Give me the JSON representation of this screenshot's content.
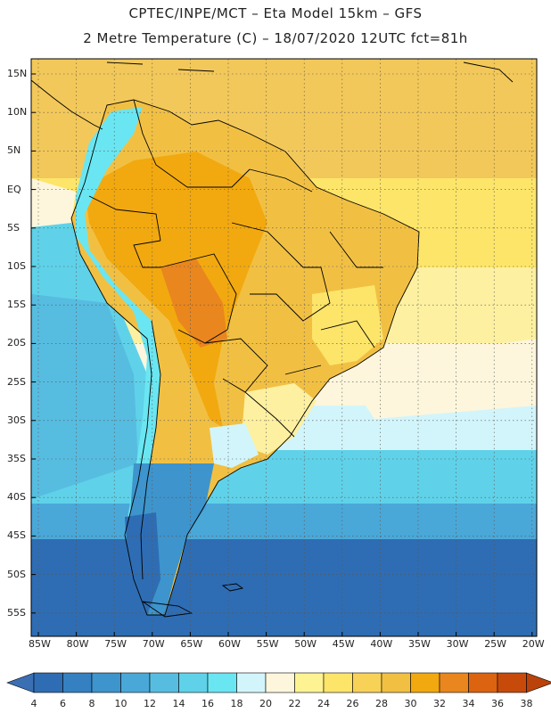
{
  "header": {
    "line1": "CPTEC/INPE/MCT –  Eta Model 15km – GFS",
    "line2": "2 Metre Temperature (C) – 18/07/2020 12UTC fct=81h"
  },
  "axes": {
    "lat_labels": [
      "15N",
      "10N",
      "5N",
      "EQ",
      "5S",
      "10S",
      "15S",
      "20S",
      "25S",
      "30S",
      "35S",
      "40S",
      "45S",
      "50S",
      "55S"
    ],
    "lon_labels": [
      "85W",
      "80W",
      "75W",
      "70W",
      "65W",
      "60W",
      "55W",
      "50W",
      "45W",
      "40W",
      "35W",
      "30W",
      "25W",
      "20W"
    ]
  },
  "colorbar": {
    "labels": [
      "4",
      "6",
      "8",
      "10",
      "12",
      "14",
      "16",
      "18",
      "20",
      "22",
      "24",
      "26",
      "28",
      "30",
      "32",
      "34",
      "36",
      "38"
    ],
    "colors": [
      "#2e6db3",
      "#3580c1",
      "#3e94cc",
      "#4aa8d8",
      "#56bde1",
      "#5fd2e9",
      "#6ae6f2",
      "#d2f5fb",
      "#fdf6dc",
      "#fef393",
      "#fde56a",
      "#f8d257",
      "#f1c043",
      "#f2a90f",
      "#e9861d",
      "#dc6310",
      "#c74a0b"
    ],
    "under_color": "#3a6fb4",
    "over_color": "#b9430a"
  },
  "map": {
    "region": "South America",
    "variable": "2 Metre Temperature",
    "units": "C",
    "lat_range": [
      -58,
      16
    ],
    "lon_range": [
      -85,
      -20
    ]
  }
}
